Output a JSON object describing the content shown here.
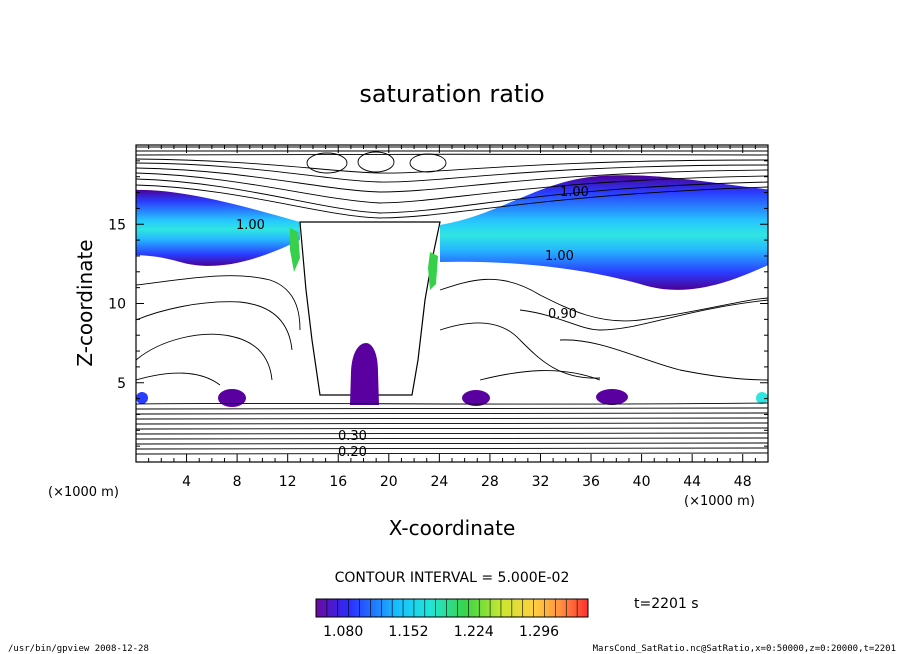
{
  "chart_data": {
    "type": "contour",
    "title": "saturation ratio",
    "xlabel": "X-coordinate",
    "ylabel": "Z-coordinate",
    "x_unit": "(×1000 m)",
    "y_unit": "(×1000 m)",
    "xlim": [
      0,
      50
    ],
    "ylim": [
      0,
      20
    ],
    "x_ticks": [
      "4",
      "8",
      "12",
      "16",
      "20",
      "24",
      "28",
      "32",
      "36",
      "40",
      "44",
      "48"
    ],
    "y_ticks": [
      "5",
      "10",
      "15"
    ],
    "contour_labels": [
      "1.00",
      "1.00",
      "1.00",
      "0.90",
      "0.30",
      "0.20"
    ],
    "contour_interval": "CONTOUR INTERVAL = 5.000E-02",
    "colorbar_ticks": [
      "1.080",
      "1.152",
      "1.224",
      "1.296"
    ],
    "colorbar_range": [
      1.05,
      1.35
    ],
    "time_label": "t=2201 s"
  },
  "footer": {
    "left": "/usr/bin/gpview   2008-12-28",
    "right": "MarsCond_SatRatio.nc@SatRatio,x=0:50000,z=0:20000,t=2201"
  },
  "colors": {
    "dark": "#4b0096",
    "mid": "#1f6cff",
    "core": "#2fe6e0",
    "green": "#37d04a"
  }
}
